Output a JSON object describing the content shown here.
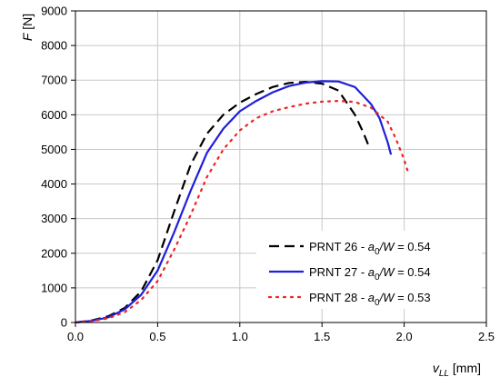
{
  "chart_data": {
    "type": "line",
    "title": "",
    "xlabel_var": "v",
    "xlabel_sub": "LL",
    "xlabel_unit": " [mm]",
    "ylabel_var": "F",
    "ylabel_unit": " [N]",
    "xlim": [
      0,
      2.5
    ],
    "ylim": [
      0,
      9000
    ],
    "xticks": [
      0,
      0.5,
      1,
      1.5,
      2,
      2.5
    ],
    "xtick_labels": [
      "0.0",
      "0.5",
      "1.0",
      "1.5",
      "2.0",
      "2.5"
    ],
    "yticks": [
      0,
      1000,
      2000,
      3000,
      4000,
      5000,
      6000,
      7000,
      8000,
      9000
    ],
    "ytick_labels": [
      "0",
      "1000",
      "2000",
      "3000",
      "4000",
      "5000",
      "6000",
      "7000",
      "8000",
      "9000"
    ],
    "grid": true,
    "legend_position": "bottom-right",
    "series": [
      {
        "name": "PRNT 26 - a0/W = 0.54",
        "legend_main": "PRNT 26 - ",
        "legend_var": "a",
        "legend_sub": "0",
        "legend_rest": "/W",
        "legend_value": " = 0.54",
        "color": "#000000",
        "style": "dashed",
        "x": [
          0,
          0.1,
          0.2,
          0.3,
          0.4,
          0.5,
          0.6,
          0.7,
          0.8,
          0.9,
          1.0,
          1.1,
          1.2,
          1.3,
          1.4,
          1.5,
          1.6,
          1.7,
          1.75,
          1.78
        ],
        "y": [
          0,
          60,
          180,
          420,
          900,
          1800,
          3200,
          4550,
          5450,
          6000,
          6350,
          6600,
          6800,
          6920,
          6950,
          6900,
          6700,
          6000,
          5500,
          5150
        ]
      },
      {
        "name": "PRNT 27 - a0/W = 0.54",
        "legend_main": "PRNT 27 - ",
        "legend_var": "a",
        "legend_sub": "0",
        "legend_rest": "/W",
        "legend_value": " = 0.54",
        "color": "#1f1fdc",
        "style": "solid",
        "x": [
          0,
          0.1,
          0.2,
          0.3,
          0.4,
          0.5,
          0.6,
          0.7,
          0.8,
          0.9,
          1.0,
          1.1,
          1.2,
          1.3,
          1.4,
          1.5,
          1.6,
          1.7,
          1.8,
          1.85,
          1.9,
          1.92
        ],
        "y": [
          0,
          50,
          150,
          380,
          800,
          1500,
          2600,
          3800,
          4900,
          5600,
          6100,
          6400,
          6650,
          6830,
          6930,
          6970,
          6960,
          6800,
          6300,
          5900,
          5200,
          4850
        ]
      },
      {
        "name": "PRNT 28 - a0/W = 0.53",
        "legend_main": "PRNT 28 - ",
        "legend_var": "a",
        "legend_sub": "0",
        "legend_rest": "/W",
        "legend_value": " = 0.53",
        "color": "#ee2222",
        "style": "dotted",
        "x": [
          0,
          0.1,
          0.2,
          0.3,
          0.4,
          0.5,
          0.6,
          0.7,
          0.8,
          0.9,
          1.0,
          1.1,
          1.2,
          1.3,
          1.4,
          1.5,
          1.6,
          1.7,
          1.8,
          1.9,
          1.95,
          2.0,
          2.02
        ],
        "y": [
          0,
          40,
          120,
          300,
          650,
          1200,
          2100,
          3100,
          4200,
          5000,
          5550,
          5900,
          6100,
          6220,
          6320,
          6380,
          6400,
          6370,
          6200,
          5800,
          5300,
          4700,
          4400
        ]
      }
    ]
  }
}
